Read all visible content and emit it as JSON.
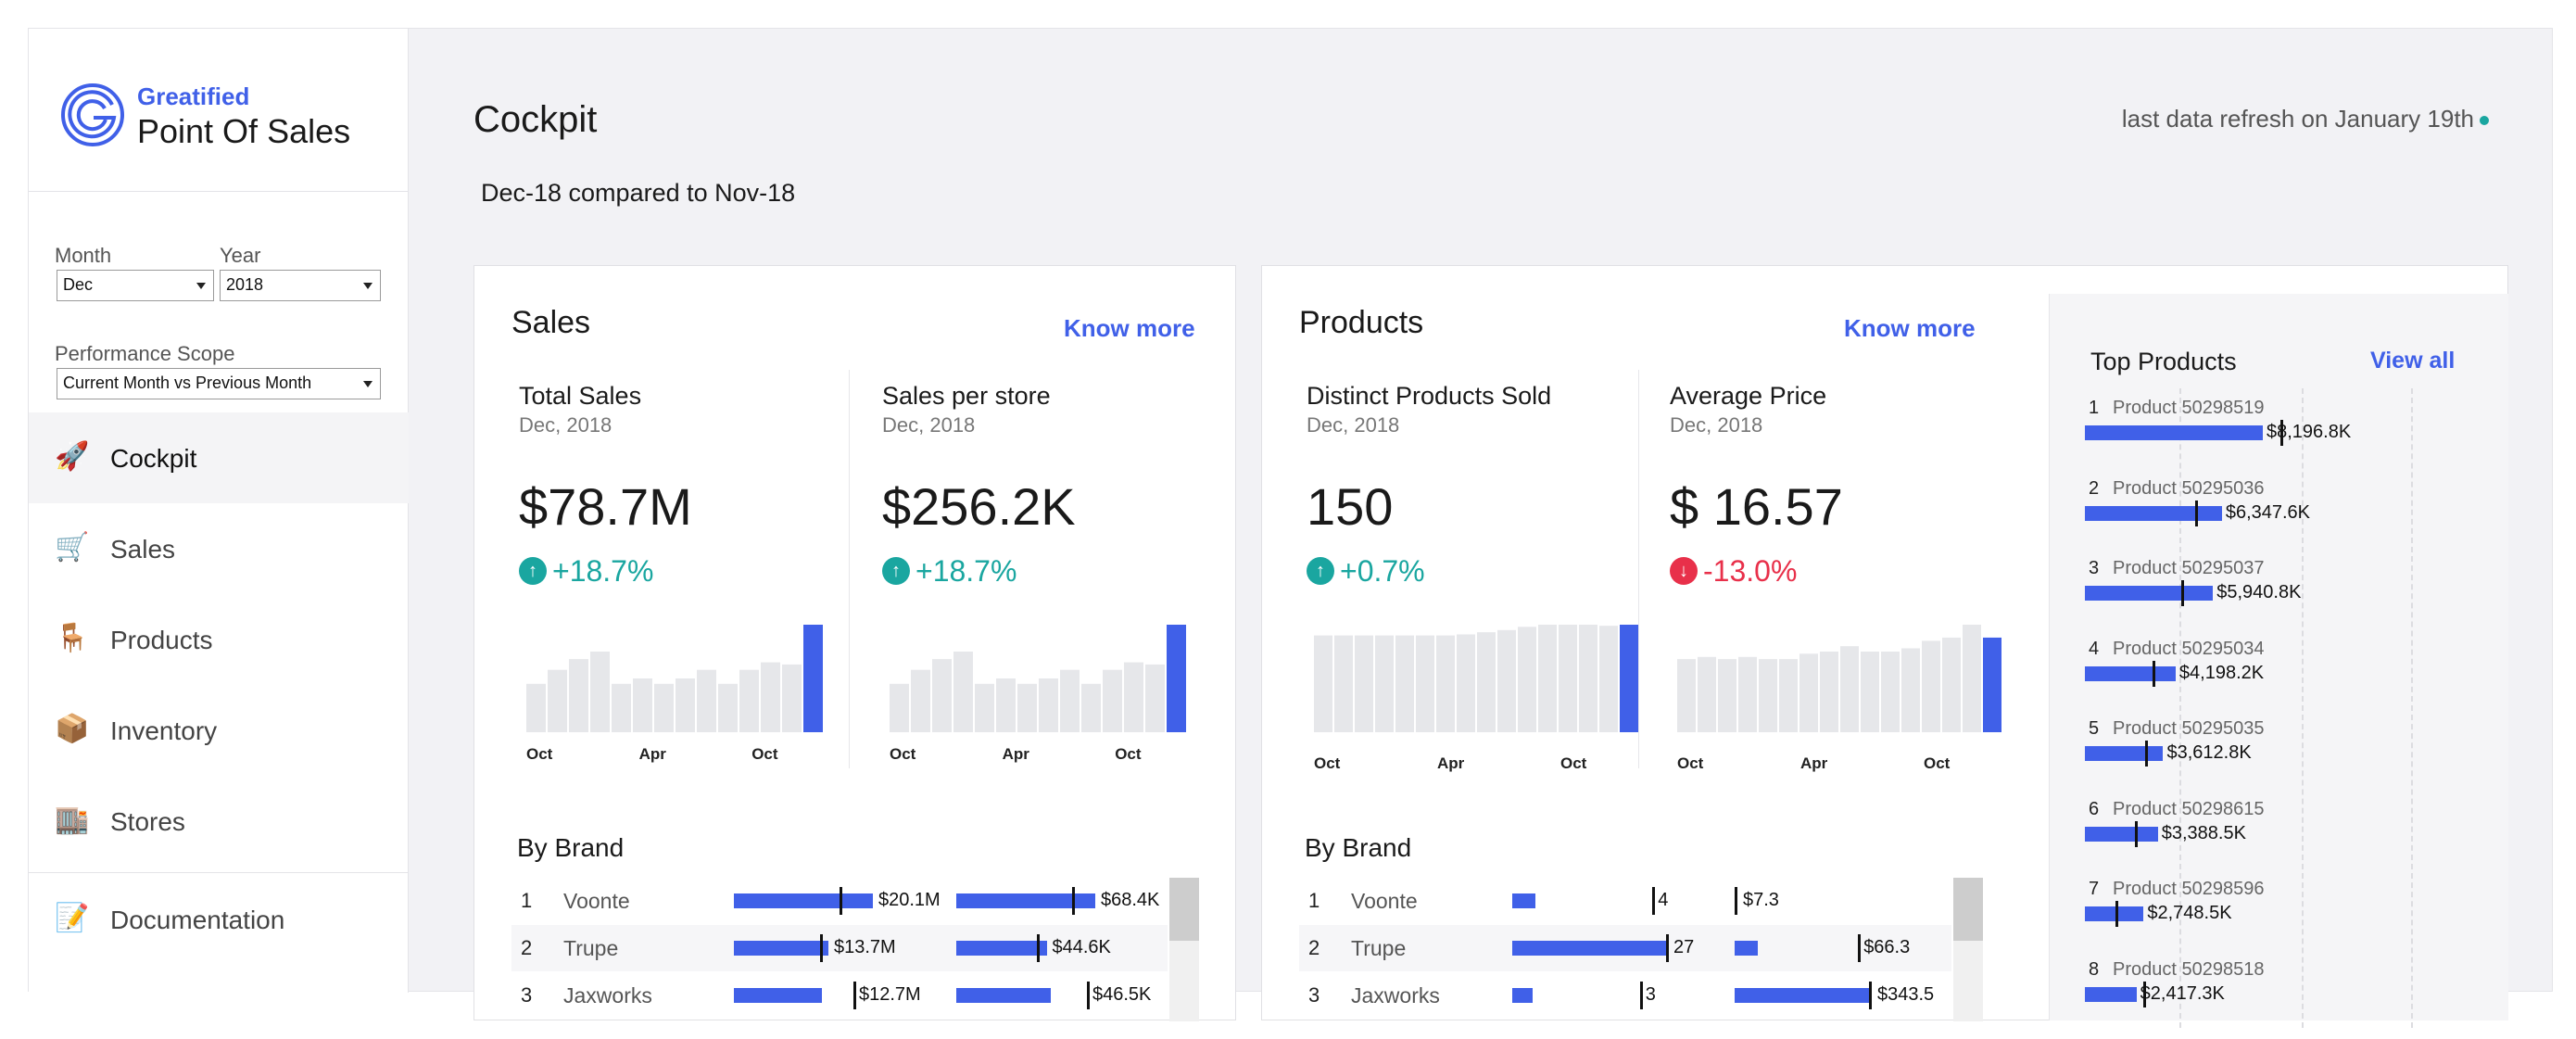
{
  "brand": {
    "company": "Greatified",
    "app": "Point Of Sales"
  },
  "filters": {
    "month": {
      "label": "Month",
      "value": "Dec"
    },
    "year": {
      "label": "Year",
      "value": "2018"
    },
    "scope": {
      "label": "Performance Scope",
      "value": "Current Month vs Previous Month"
    }
  },
  "nav": [
    {
      "label": "Cockpit",
      "icon": "rocket-icon",
      "glyph": "🚀",
      "active": true
    },
    {
      "label": "Sales",
      "icon": "cart-icon",
      "glyph": "🛒"
    },
    {
      "label": "Products",
      "icon": "chair-icon",
      "glyph": "🪑"
    },
    {
      "label": "Inventory",
      "icon": "package-icon",
      "glyph": "📦"
    },
    {
      "label": "Stores",
      "icon": "building-icon",
      "glyph": "🏬"
    },
    {
      "label": "Documentation",
      "icon": "memo-icon",
      "glyph": "📝"
    }
  ],
  "header": {
    "title": "Cockpit",
    "refresh": "last data refresh on January 19th",
    "compare": "Dec-18 compared to Nov-18"
  },
  "colors": {
    "accent": "#4060e8",
    "positive": "#1aa6a0",
    "negative": "#e8304a",
    "bar_muted": "#e6e7ea"
  },
  "sales": {
    "title": "Sales",
    "link": "Know more",
    "kpis": [
      {
        "title": "Total Sales",
        "date": "Dec, 2018",
        "value": "$78.7M",
        "delta": "+18.7%",
        "trend": "up",
        "spark": [
          45,
          58,
          68,
          75,
          45,
          50,
          45,
          50,
          58,
          45,
          58,
          65,
          63,
          100
        ]
      },
      {
        "title": "Sales per store",
        "date": "Dec, 2018",
        "value": "$256.2K",
        "delta": "+18.7%",
        "trend": "up",
        "spark": [
          45,
          58,
          68,
          75,
          45,
          50,
          45,
          50,
          58,
          45,
          58,
          65,
          63,
          100
        ]
      }
    ],
    "axis_labels": [
      "Oct",
      "Apr",
      "Oct"
    ],
    "by_brand": {
      "title": "By Brand",
      "rows": [
        {
          "rank": "1",
          "name": "Voonte",
          "v1": "$20.1M",
          "f1": 1.0,
          "t1": 0.76,
          "v2": "$68.4K",
          "f2": 1.0,
          "t2": 0.83
        },
        {
          "rank": "2",
          "name": "Trupe",
          "v1": "$13.7M",
          "f1": 0.68,
          "t1": 0.62,
          "v2": "$44.6K",
          "f2": 0.65,
          "t2": 0.58
        },
        {
          "rank": "3",
          "name": "Jaxworks",
          "v1": "$12.7M",
          "f1": 0.63,
          "t1": 0.86,
          "v2": "$46.5K",
          "f2": 0.68,
          "t2": 0.94
        }
      ]
    }
  },
  "products": {
    "title": "Products",
    "link": "Know more",
    "kpis": [
      {
        "title": "Distinct Products Sold",
        "date": "Dec, 2018",
        "value": "150",
        "delta": "+0.7%",
        "trend": "up",
        "spark": [
          90,
          90,
          90,
          90,
          90,
          90,
          90,
          91,
          93,
          95,
          98,
          100,
          100,
          100,
          99,
          100
        ]
      },
      {
        "title": "Average Price",
        "date": "Dec, 2018",
        "value": "$ 16.57",
        "delta": "-13.0%",
        "trend": "down",
        "spark": [
          68,
          70,
          68,
          70,
          68,
          68,
          73,
          75,
          80,
          75,
          75,
          78,
          85,
          88,
          100,
          88
        ]
      }
    ],
    "axis_labels": [
      "Oct",
      "Apr",
      "Oct"
    ],
    "by_brand": {
      "title": "By Brand",
      "rows": [
        {
          "rank": "1",
          "name": "Voonte",
          "v1": "4",
          "f1": 0.15,
          "t1": 0.9,
          "v2": "$7.3",
          "f2": 0.02,
          "t2": 0.0
        },
        {
          "rank": "2",
          "name": "Trupe",
          "v1": "27",
          "f1": 1.0,
          "t1": 0.99,
          "v2": "$66.3",
          "f2": 0.17,
          "t2": 0.9
        },
        {
          "rank": "3",
          "name": "Jaxworks",
          "v1": "3",
          "f1": 0.13,
          "t1": 0.82,
          "v2": "$343.5",
          "f2": 1.0,
          "t2": 0.98
        }
      ]
    }
  },
  "top_products": {
    "title": "Top Products",
    "link": "View all",
    "items": [
      {
        "rank": "1",
        "name": "Product 50298519",
        "value": "$8,196.8K",
        "frac": 1.0,
        "tick": 1.1
      },
      {
        "rank": "2",
        "name": "Product 50295036",
        "value": "$6,347.6K",
        "frac": 0.77,
        "tick": 0.62
      },
      {
        "rank": "3",
        "name": "Product 50295037",
        "value": "$5,940.8K",
        "frac": 0.72,
        "tick": 0.54
      },
      {
        "rank": "4",
        "name": "Product 50295034",
        "value": "$4,198.2K",
        "frac": 0.51,
        "tick": 0.38
      },
      {
        "rank": "5",
        "name": "Product 50295035",
        "value": "$3,612.8K",
        "frac": 0.44,
        "tick": 0.34
      },
      {
        "rank": "6",
        "name": "Product 50298615",
        "value": "$3,388.5K",
        "frac": 0.41,
        "tick": 0.28
      },
      {
        "rank": "7",
        "name": "Product 50298596",
        "value": "$2,748.5K",
        "frac": 0.33,
        "tick": 0.17
      },
      {
        "rank": "8",
        "name": "Product 50298518",
        "value": "$2,417.3K",
        "frac": 0.29,
        "tick": 0.33
      }
    ]
  }
}
